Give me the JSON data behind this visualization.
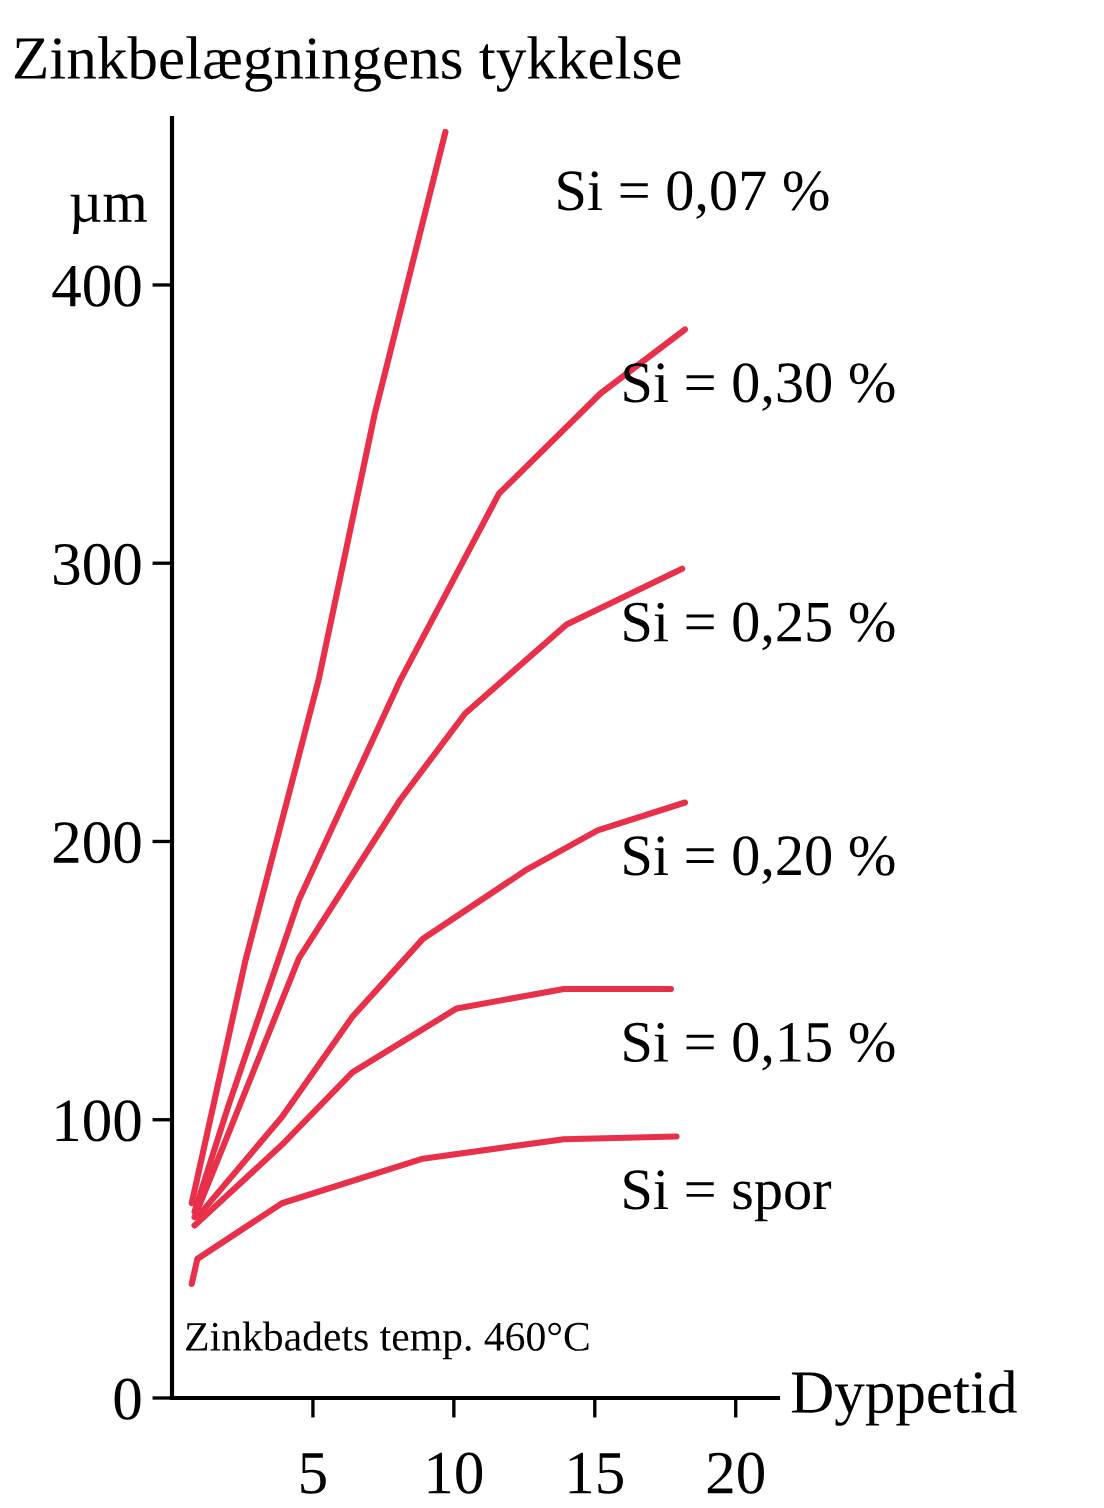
{
  "chart_data": {
    "type": "line",
    "title": "Zinkbelægningens tykkelse",
    "ylabel": "µm",
    "xlabel": "Dyppetid",
    "annotations": [
      "Zinkbadets temp. 460°C"
    ],
    "xlim": [
      0,
      21.5
    ],
    "ylim": [
      0,
      460
    ],
    "xticks": [
      5,
      10,
      15,
      20
    ],
    "yticks": [
      0,
      100,
      200,
      300,
      400
    ],
    "grid": false,
    "legend": false,
    "marker": "none",
    "line_style": "solid",
    "series": [
      {
        "name": "Si = 0,07 %",
        "color": "#e8304a",
        "x": [
          0.7,
          2.6,
          5.2,
          7.2,
          9.7
        ],
        "values": [
          70,
          157,
          258,
          354,
          455
        ]
      },
      {
        "name": "Si = 0,30 %",
        "color": "#e8304a",
        "x": [
          0.8,
          2,
          4.5,
          8.1,
          11.6,
          15.2,
          18.2
        ],
        "values": [
          67,
          105,
          179,
          258,
          325,
          361,
          384
        ]
      },
      {
        "name": "Si = 0,25 %",
        "color": "#e8304a",
        "x": [
          0.8,
          2,
          4.5,
          8.1,
          10.4,
          14,
          18.1
        ],
        "values": [
          65,
          95,
          158,
          215,
          246,
          278,
          298
        ]
      },
      {
        "name": "Si = 0,20 %",
        "color": "#e8304a",
        "x": [
          0.9,
          3.9,
          6.4,
          8.9,
          12.6,
          15.1,
          18.2
        ],
        "values": [
          65,
          101,
          137,
          165,
          190,
          204,
          214
        ]
      },
      {
        "name": "Si = 0,15 %",
        "color": "#e8304a",
        "x": [
          0.8,
          3.9,
          6.4,
          10.1,
          13.9,
          17.7
        ],
        "values": [
          62,
          91,
          117,
          140,
          147,
          147
        ]
      },
      {
        "name": "Si = spor",
        "color": "#e8304a",
        "x": [
          0.7,
          0.9,
          3.9,
          8.9,
          13.9,
          17.9
        ],
        "values": [
          41,
          50,
          70,
          86,
          93,
          94
        ]
      }
    ]
  }
}
